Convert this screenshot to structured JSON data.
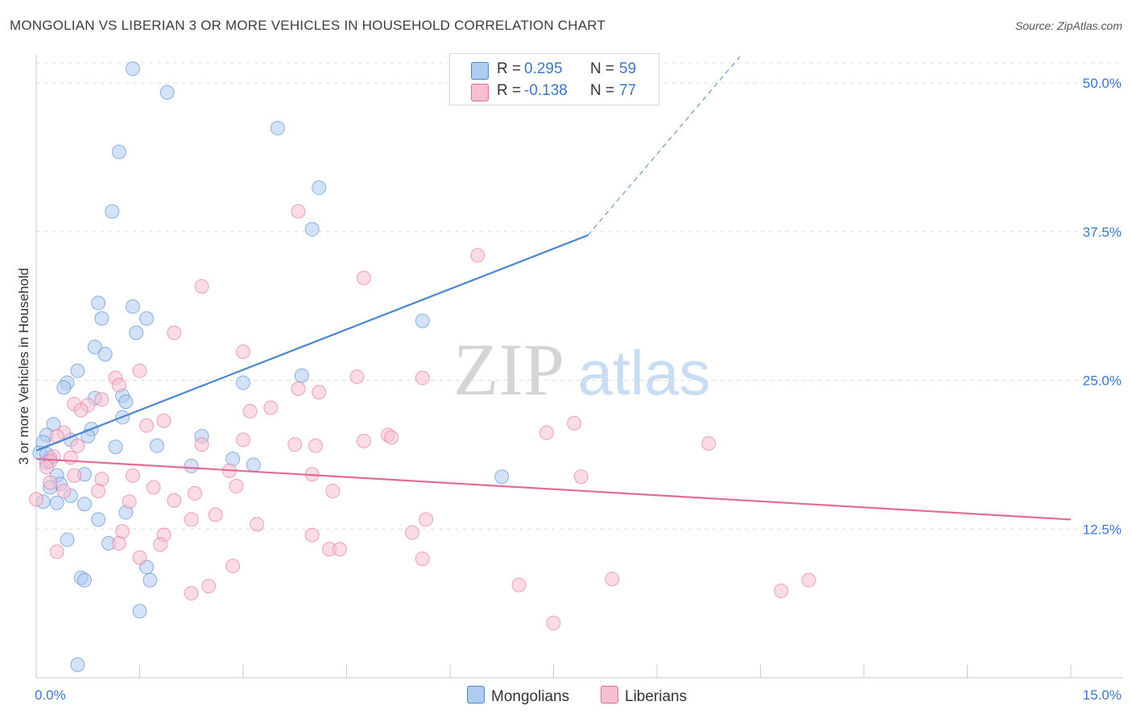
{
  "title": "MONGOLIAN VS LIBERIAN 3 OR MORE VEHICLES IN HOUSEHOLD CORRELATION CHART",
  "source": "Source: ZipAtlas.com",
  "watermark": {
    "zip": "ZIP",
    "atlas": "atlas"
  },
  "legend": {
    "rows": [
      {
        "r_label": "R =",
        "r_value": "0.295",
        "n_label": "N =",
        "n_value": "59",
        "color": "#aecbf0"
      },
      {
        "r_label": "R =",
        "r_value": "-0.138",
        "n_label": "N =",
        "n_value": "77",
        "color": "#f7bfd0"
      }
    ]
  },
  "bottom_legend": [
    {
      "label": "Mongolians",
      "color": "#aecbf0"
    },
    {
      "label": "Liberians",
      "color": "#f7bfd0"
    }
  ],
  "chart_data": {
    "type": "scatter",
    "title": "MONGOLIAN VS LIBERIAN 3 OR MORE VEHICLES IN HOUSEHOLD CORRELATION CHART",
    "xlabel": "",
    "ylabel": "3 or more Vehicles in Household",
    "xlim": [
      0,
      15
    ],
    "ylim": [
      0,
      50
    ],
    "x_tick_labels": [
      "0.0%",
      "15.0%"
    ],
    "y_ticks": [
      12.5,
      25.0,
      37.5,
      50.0
    ],
    "y_tick_labels": [
      "12.5%",
      "25.0%",
      "37.5%",
      "50.0%"
    ],
    "grid": "horizontal dashed",
    "series": [
      {
        "name": "Mongolians",
        "color": "#4a86d0",
        "fill": "#aecbf0",
        "trend": {
          "x0": 0,
          "y0": 19.1,
          "x1": 8.0,
          "y1": 37.2,
          "dashed_to_x": 10.2,
          "dashed_to_y": 52.2
        },
        "points": [
          [
            1.4,
            51.2
          ],
          [
            1.9,
            49.2
          ],
          [
            3.5,
            46.2
          ],
          [
            1.2,
            44.2
          ],
          [
            4.1,
            41.2
          ],
          [
            1.1,
            39.2
          ],
          [
            4.0,
            37.7
          ],
          [
            0.9,
            31.5
          ],
          [
            1.4,
            31.2
          ],
          [
            0.95,
            30.2
          ],
          [
            1.6,
            30.2
          ],
          [
            1.45,
            29.0
          ],
          [
            5.6,
            30.0
          ],
          [
            0.85,
            27.8
          ],
          [
            1.0,
            27.2
          ],
          [
            0.6,
            25.8
          ],
          [
            0.45,
            24.8
          ],
          [
            0.4,
            24.4
          ],
          [
            0.85,
            23.5
          ],
          [
            1.25,
            23.7
          ],
          [
            1.3,
            23.2
          ],
          [
            1.25,
            21.9
          ],
          [
            3.0,
            24.8
          ],
          [
            3.85,
            25.4
          ],
          [
            0.25,
            21.3
          ],
          [
            0.8,
            20.9
          ],
          [
            0.75,
            20.3
          ],
          [
            0.5,
            20.0
          ],
          [
            0.15,
            20.4
          ],
          [
            0.1,
            19.8
          ],
          [
            1.15,
            19.4
          ],
          [
            1.75,
            19.5
          ],
          [
            2.4,
            20.3
          ],
          [
            0.05,
            18.9
          ],
          [
            0.2,
            18.5
          ],
          [
            0.15,
            18.1
          ],
          [
            0.3,
            17.0
          ],
          [
            0.7,
            17.1
          ],
          [
            0.35,
            16.3
          ],
          [
            0.5,
            15.3
          ],
          [
            0.3,
            14.7
          ],
          [
            0.7,
            14.6
          ],
          [
            2.25,
            17.8
          ],
          [
            2.85,
            18.4
          ],
          [
            3.15,
            17.9
          ],
          [
            6.75,
            16.9
          ],
          [
            0.9,
            13.3
          ],
          [
            1.3,
            13.9
          ],
          [
            0.45,
            11.6
          ],
          [
            1.05,
            11.3
          ],
          [
            1.6,
            9.3
          ],
          [
            1.65,
            8.2
          ],
          [
            0.65,
            8.4
          ],
          [
            0.7,
            8.2
          ],
          [
            1.5,
            5.6
          ],
          [
            0.6,
            1.1
          ],
          [
            0.2,
            16.0
          ],
          [
            0.15,
            18.8
          ],
          [
            0.1,
            14.8
          ]
        ]
      },
      {
        "name": "Liberians",
        "color": "#e46a96",
        "fill": "#f7bfd0",
        "trend": {
          "x0": 0,
          "y0": 18.4,
          "x1": 15.0,
          "y1": 13.3
        },
        "points": [
          [
            3.8,
            39.2
          ],
          [
            6.4,
            35.5
          ],
          [
            4.75,
            33.6
          ],
          [
            2.4,
            32.9
          ],
          [
            2.0,
            29.0
          ],
          [
            3.0,
            27.4
          ],
          [
            1.5,
            25.8
          ],
          [
            4.65,
            25.3
          ],
          [
            5.6,
            25.2
          ],
          [
            1.15,
            25.2
          ],
          [
            1.2,
            24.6
          ],
          [
            3.8,
            24.3
          ],
          [
            4.1,
            24.0
          ],
          [
            0.95,
            23.4
          ],
          [
            0.75,
            22.9
          ],
          [
            0.55,
            23.0
          ],
          [
            0.65,
            22.5
          ],
          [
            3.4,
            22.7
          ],
          [
            3.1,
            22.4
          ],
          [
            1.85,
            21.6
          ],
          [
            1.6,
            21.2
          ],
          [
            7.8,
            21.4
          ],
          [
            7.4,
            20.6
          ],
          [
            5.1,
            20.4
          ],
          [
            5.15,
            20.2
          ],
          [
            4.75,
            19.9
          ],
          [
            3.75,
            19.6
          ],
          [
            4.05,
            19.5
          ],
          [
            2.4,
            19.6
          ],
          [
            9.75,
            19.7
          ],
          [
            0.6,
            19.5
          ],
          [
            0.4,
            20.6
          ],
          [
            0.3,
            20.3
          ],
          [
            0.25,
            18.6
          ],
          [
            0.2,
            18.2
          ],
          [
            0.15,
            17.7
          ],
          [
            0.5,
            18.5
          ],
          [
            0.55,
            17.0
          ],
          [
            0.95,
            16.7
          ],
          [
            1.4,
            17.0
          ],
          [
            2.8,
            17.4
          ],
          [
            4.0,
            17.1
          ],
          [
            7.9,
            16.9
          ],
          [
            0.2,
            16.4
          ],
          [
            0.4,
            15.7
          ],
          [
            0.9,
            15.7
          ],
          [
            1.7,
            16.0
          ],
          [
            2.3,
            15.5
          ],
          [
            2.9,
            16.1
          ],
          [
            4.3,
            15.7
          ],
          [
            1.35,
            14.8
          ],
          [
            2.0,
            14.9
          ],
          [
            2.6,
            13.7
          ],
          [
            3.2,
            12.9
          ],
          [
            5.65,
            13.3
          ],
          [
            2.25,
            13.3
          ],
          [
            1.25,
            12.3
          ],
          [
            1.85,
            12.0
          ],
          [
            4.0,
            12.0
          ],
          [
            5.45,
            12.2
          ],
          [
            1.2,
            11.3
          ],
          [
            1.8,
            11.2
          ],
          [
            4.25,
            10.8
          ],
          [
            4.4,
            10.8
          ],
          [
            0.3,
            10.6
          ],
          [
            1.5,
            10.1
          ],
          [
            5.6,
            10.0
          ],
          [
            2.85,
            9.4
          ],
          [
            3.0,
            20.0
          ],
          [
            8.35,
            8.3
          ],
          [
            7.0,
            7.8
          ],
          [
            11.2,
            8.2
          ],
          [
            10.8,
            7.3
          ],
          [
            2.5,
            7.7
          ],
          [
            2.25,
            7.1
          ],
          [
            7.5,
            4.6
          ],
          [
            0.0,
            15.0
          ]
        ]
      }
    ]
  }
}
